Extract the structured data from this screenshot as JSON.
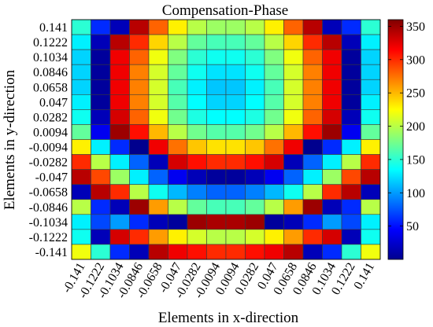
{
  "chart_data": {
    "type": "heatmap",
    "title": "Compensation-Phase",
    "xlabel": "Elements in x-direction",
    "ylabel": "Elements in y-direction",
    "x_ticks": [
      "-0.141",
      "-0.1222",
      "-0.1034",
      "-0.0846",
      "-0.0658",
      "-0.047",
      "-0.0282",
      "-0.0094",
      "0.0094",
      "0.0282",
      "0.047",
      "0.0658",
      "0.0846",
      "0.1034",
      "0.1222",
      "0.141"
    ],
    "y_ticks": [
      "0.141",
      "0.1222",
      "0.1034",
      "0.0846",
      "0.0658",
      "0.047",
      "0.0282",
      "0.0094",
      "-0.0094",
      "-0.0282",
      "-0.047",
      "-0.0658",
      "-0.0846",
      "-0.1034",
      "-0.1222",
      "-0.141"
    ],
    "colorbar": {
      "colormap": "jet",
      "range": [
        0,
        360
      ],
      "ticks": [
        50,
        100,
        150,
        200,
        250,
        300,
        350
      ]
    },
    "values": [
      [
        150,
        60,
        20,
        340,
        280,
        230,
        200,
        190,
        190,
        200,
        230,
        280,
        340,
        20,
        60,
        150
      ],
      [
        130,
        20,
        340,
        300,
        240,
        200,
        170,
        160,
        160,
        170,
        200,
        240,
        300,
        340,
        20,
        130
      ],
      [
        120,
        10,
        320,
        280,
        220,
        180,
        150,
        140,
        140,
        150,
        180,
        220,
        280,
        320,
        10,
        120
      ],
      [
        120,
        10,
        320,
        270,
        210,
        170,
        140,
        125,
        125,
        140,
        170,
        210,
        270,
        320,
        10,
        120
      ],
      [
        120,
        10,
        320,
        270,
        210,
        160,
        130,
        115,
        115,
        130,
        160,
        210,
        270,
        320,
        10,
        120
      ],
      [
        130,
        10,
        320,
        270,
        210,
        165,
        135,
        120,
        120,
        135,
        165,
        210,
        270,
        320,
        10,
        130
      ],
      [
        140,
        20,
        330,
        280,
        220,
        175,
        145,
        135,
        135,
        145,
        175,
        220,
        280,
        330,
        20,
        140
      ],
      [
        170,
        40,
        350,
        310,
        250,
        200,
        175,
        165,
        165,
        175,
        200,
        250,
        310,
        350,
        40,
        170
      ],
      [
        230,
        130,
        60,
        5,
        320,
        275,
        245,
        235,
        235,
        245,
        275,
        320,
        5,
        60,
        130,
        230
      ],
      [
        300,
        200,
        130,
        80,
        20,
        330,
        310,
        300,
        300,
        310,
        330,
        20,
        80,
        130,
        200,
        300
      ],
      [
        340,
        290,
        190,
        130,
        80,
        40,
        20,
        10,
        10,
        20,
        40,
        80,
        130,
        190,
        290,
        340
      ],
      [
        20,
        340,
        300,
        200,
        140,
        110,
        90,
        80,
        80,
        90,
        110,
        140,
        200,
        300,
        340,
        20
      ],
      [
        200,
        60,
        20,
        350,
        260,
        200,
        170,
        160,
        160,
        170,
        200,
        260,
        350,
        20,
        60,
        200
      ],
      [
        130,
        70,
        100,
        60,
        20,
        10,
        350,
        345,
        345,
        350,
        10,
        20,
        60,
        100,
        70,
        130
      ],
      [
        140,
        20,
        330,
        300,
        260,
        230,
        210,
        200,
        200,
        210,
        230,
        260,
        300,
        330,
        20,
        140
      ],
      [
        220,
        150,
        60,
        20,
        340,
        320,
        310,
        300,
        300,
        310,
        320,
        340,
        20,
        60,
        150,
        220
      ]
    ]
  }
}
